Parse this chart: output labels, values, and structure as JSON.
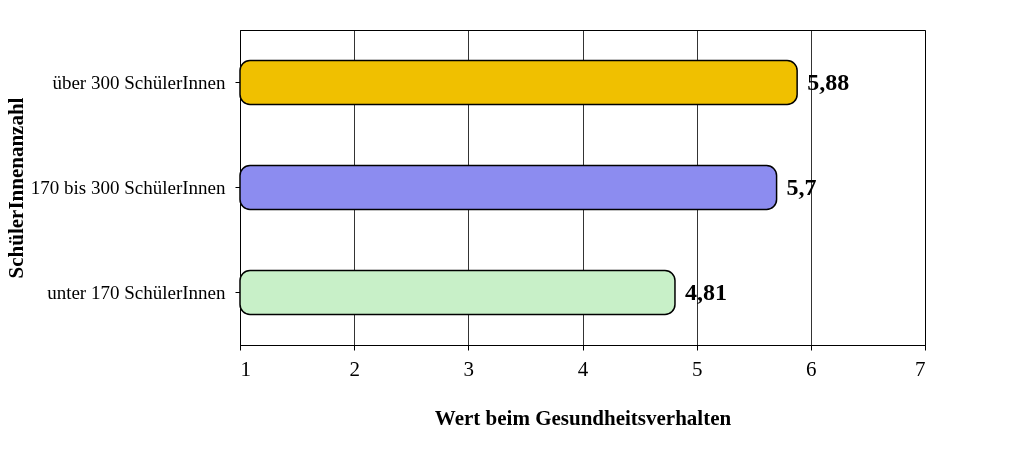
{
  "chart_data": {
    "type": "bar",
    "orientation": "horizontal",
    "xlabel": "Wert beim Gesundheitsverhalten",
    "ylabel": "SchülerInnenanzahl",
    "categories": [
      "über 300 SchülerInnen",
      "170 bis 300 SchülerInnen",
      "unter 170 SchülerInnen"
    ],
    "values": [
      5.88,
      5.7,
      4.81
    ],
    "colors": [
      "#f0c000",
      "#8c8cf0",
      "#c8f0c8"
    ],
    "value_labels": [
      "5,88",
      "5,7",
      "4,81"
    ],
    "xlim": [
      1,
      7
    ],
    "xticks": [
      1,
      2,
      3,
      4,
      5,
      6,
      7
    ],
    "grid": "x"
  }
}
